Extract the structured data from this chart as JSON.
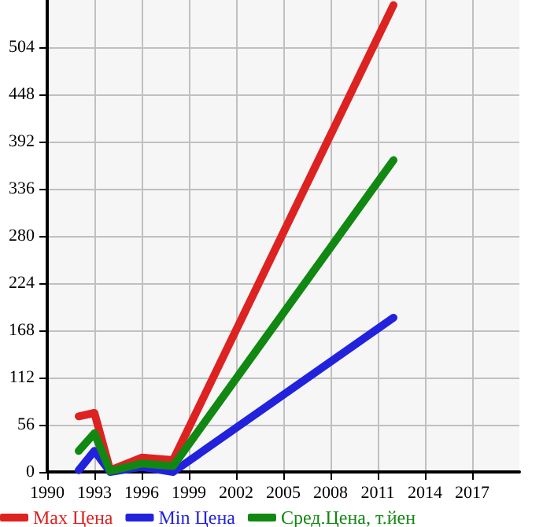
{
  "chart_data": {
    "type": "line",
    "x": [
      1992,
      1993,
      1994,
      1996,
      1998,
      2012
    ],
    "series": [
      {
        "name": "Max Цена",
        "color": "#dd2222",
        "values": [
          66,
          70,
          2,
          17,
          14,
          554
        ]
      },
      {
        "name": "Min Цена",
        "color": "#2222dd",
        "values": [
          2,
          25,
          0,
          6,
          0,
          183
        ]
      },
      {
        "name": "Сред.Цена, т.йен",
        "color": "#118811",
        "values": [
          25,
          46,
          1,
          10,
          7,
          370
        ]
      }
    ],
    "xlim": [
      1990,
      2020
    ],
    "xticks": [
      1990,
      1993,
      1996,
      1999,
      2002,
      2005,
      2008,
      2011,
      2014,
      2017
    ],
    "ylim": [
      0,
      560
    ],
    "yticks": [
      0,
      56,
      112,
      168,
      224,
      280,
      336,
      392,
      448,
      504
    ],
    "grid": true,
    "legend": "bottom",
    "marker": "none",
    "line_style": "solid"
  }
}
